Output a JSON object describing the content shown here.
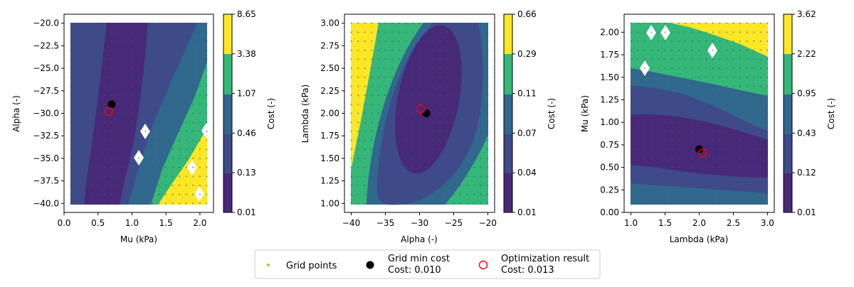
{
  "colors": {
    "band0": "#482878",
    "band1": "#3e4a89",
    "band2": "#31688e",
    "band3": "#35b779",
    "band4": "#fde725",
    "grid_point": "#bcbd22",
    "grid_min": "#000000",
    "opt_result": "#ff0000"
  },
  "legend": {
    "grid_points": "Grid points",
    "grid_min_line1": "Grid min cost",
    "grid_min_line2": "Cost: 0.010",
    "opt_line1": "Optimization result",
    "opt_line2": "Cost: 0.013"
  },
  "chart_data": [
    {
      "type": "contour",
      "xlabel": "Mu (kPa)",
      "ylabel": "Alpha (-)",
      "xlim": [
        0.0,
        2.2
      ],
      "ylim": [
        -41.0,
        -19.0
      ],
      "xticks": [
        "0.0",
        "0.5",
        "1.0",
        "1.5",
        "2.0"
      ],
      "yticks": [
        "−20.0",
        "−22.5",
        "−25.0",
        "−27.5",
        "−30.0",
        "−32.5",
        "−35.0",
        "−37.5",
        "−40.0"
      ],
      "grid": {
        "x_range": [
          0.1,
          2.1
        ],
        "y_range": [
          -40.0,
          -20.0
        ],
        "nx": 21,
        "ny": 21
      },
      "grid_min": {
        "x": 0.7,
        "y": -29.0
      },
      "opt_result": {
        "x": 0.66,
        "y": -29.8
      },
      "colorbar": {
        "label": "Cost (-)",
        "levels": [
          "0.01",
          "0.13",
          "0.46",
          "1.07",
          "3.38",
          "8.65"
        ]
      }
    },
    {
      "type": "contour",
      "xlabel": "Alpha (-)",
      "ylabel": "Lambda (kPa)",
      "xlim": [
        -41.0,
        -19.0
      ],
      "ylim": [
        0.9,
        3.1
      ],
      "xticks": [
        "−40",
        "−35",
        "−30",
        "−25",
        "−20"
      ],
      "yticks": [
        "3.00",
        "2.75",
        "2.50",
        "2.25",
        "2.00",
        "1.75",
        "1.50",
        "1.25",
        "1.00"
      ],
      "grid": {
        "x_range": [
          -40.0,
          -20.0
        ],
        "y_range": [
          1.0,
          3.0
        ],
        "nx": 21,
        "ny": 21
      },
      "grid_min": {
        "x": -29.0,
        "y": 2.0
      },
      "opt_result": {
        "x": -29.8,
        "y": 2.05
      },
      "colorbar": {
        "label": "Cost (-)",
        "levels": [
          "0.01",
          "0.04",
          "0.07",
          "0.11",
          "0.29",
          "0.66"
        ]
      }
    },
    {
      "type": "contour",
      "xlabel": "Lambda (kPa)",
      "ylabel": "Mu (kPa)",
      "xlim": [
        0.9,
        3.1
      ],
      "ylim": [
        0.0,
        2.2
      ],
      "xticks": [
        "1.0",
        "1.5",
        "2.0",
        "2.5",
        "3.0"
      ],
      "yticks": [
        "2.00",
        "1.75",
        "1.50",
        "1.25",
        "1.00",
        "0.75",
        "0.50",
        "0.25",
        "0.00"
      ],
      "grid": {
        "x_range": [
          1.0,
          3.0
        ],
        "y_range": [
          0.1,
          2.1
        ],
        "nx": 21,
        "ny": 21
      },
      "grid_min": {
        "x": 2.0,
        "y": 0.7
      },
      "opt_result": {
        "x": 2.05,
        "y": 0.66
      },
      "colorbar": {
        "label": "Cost (-)",
        "levels": [
          "0.01",
          "0.12",
          "0.43",
          "0.95",
          "2.22",
          "3.62"
        ]
      }
    }
  ]
}
